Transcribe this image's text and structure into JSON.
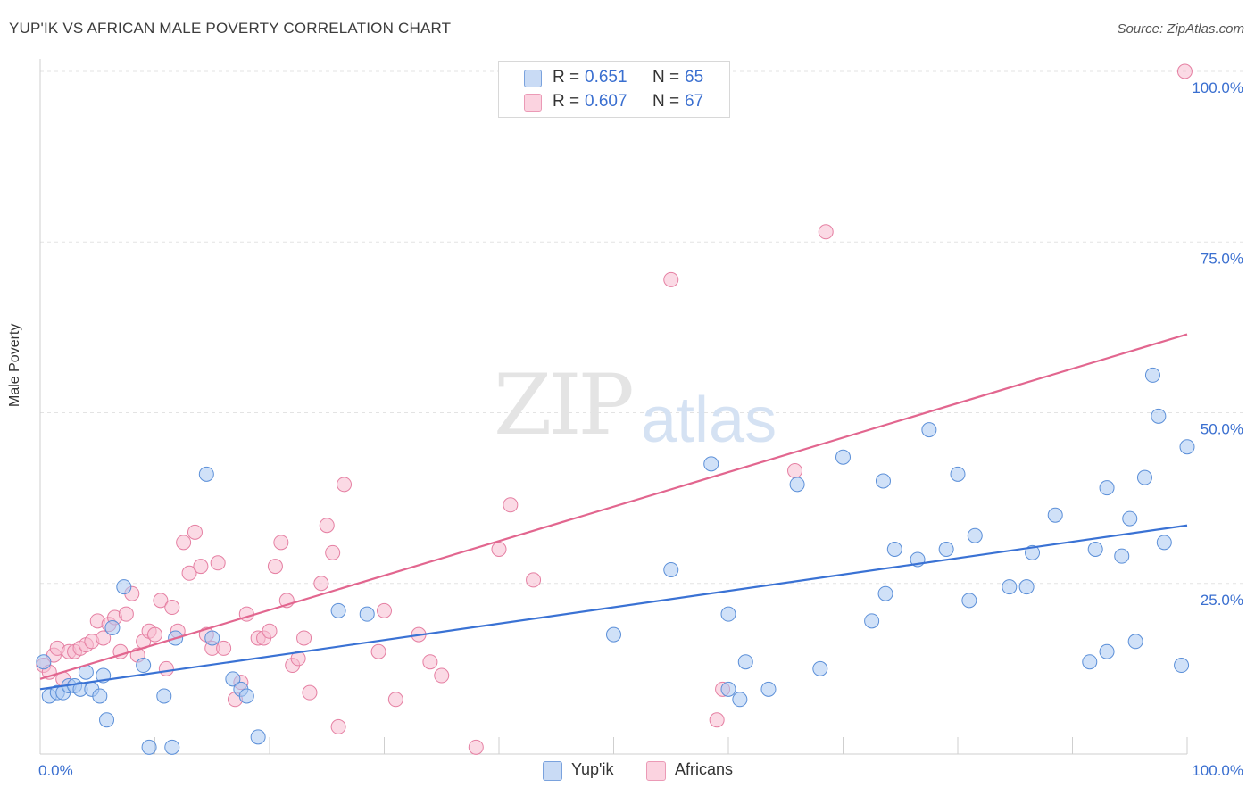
{
  "header": {
    "title": "YUP'IK VS AFRICAN MALE POVERTY CORRELATION CHART",
    "source": "Source: ZipAtlas.com"
  },
  "watermark": {
    "zip": "ZIP",
    "atlas": "atlas"
  },
  "legend": {
    "r_label": "R =",
    "n_label": "N =",
    "entries": [
      {
        "name": "Yup'ik",
        "r": "0.651",
        "n": "65",
        "fill": "#a9c8f2",
        "stroke": "#5b8fd8"
      },
      {
        "name": "Africans",
        "r": "0.607",
        "n": "67",
        "fill": "#f7bcd0",
        "stroke": "#e57fa2"
      }
    ]
  },
  "colors": {
    "blue_line": "#3a72d4",
    "pink_line": "#e2668f",
    "tick_label": "#3a6fd0",
    "grid": "#e3e3e3"
  },
  "chart_data": {
    "type": "scatter",
    "title": "YUP'IK VS AFRICAN MALE POVERTY CORRELATION CHART",
    "xlabel": "",
    "ylabel": "Male Poverty",
    "xlim": [
      0,
      100
    ],
    "ylim": [
      0,
      100
    ],
    "x_tick_labels": [
      "0.0%",
      "100.0%"
    ],
    "y_ticks": [
      25,
      50,
      75,
      100
    ],
    "y_tick_labels": [
      "25.0%",
      "50.0%",
      "75.0%",
      "100.0%"
    ],
    "grid": true,
    "legend_position": "top-center",
    "series": [
      {
        "name": "Yup'ik",
        "color": "#5b8fd8",
        "trend": {
          "x": [
            0,
            100
          ],
          "y": [
            9.5,
            33.5
          ]
        },
        "points": [
          [
            0.3,
            13.5
          ],
          [
            0.8,
            8.5
          ],
          [
            1.5,
            9.0
          ],
          [
            2.0,
            9.0
          ],
          [
            2.5,
            10.0
          ],
          [
            3.0,
            10.0
          ],
          [
            3.5,
            9.5
          ],
          [
            4.0,
            12.0
          ],
          [
            4.5,
            9.5
          ],
          [
            5.2,
            8.5
          ],
          [
            5.5,
            11.5
          ],
          [
            5.8,
            5.0
          ],
          [
            6.3,
            18.5
          ],
          [
            7.3,
            24.5
          ],
          [
            9.0,
            13.0
          ],
          [
            9.5,
            1.0
          ],
          [
            10.8,
            8.5
          ],
          [
            11.5,
            1.0
          ],
          [
            11.8,
            17.0
          ],
          [
            14.5,
            41.0
          ],
          [
            15.0,
            17.0
          ],
          [
            16.8,
            11.0
          ],
          [
            17.5,
            9.5
          ],
          [
            18.0,
            8.5
          ],
          [
            19.0,
            2.5
          ],
          [
            26.0,
            21.0
          ],
          [
            28.5,
            20.5
          ],
          [
            50.0,
            17.5
          ],
          [
            55.0,
            27.0
          ],
          [
            58.5,
            42.5
          ],
          [
            60.0,
            20.5
          ],
          [
            60.0,
            9.5
          ],
          [
            61.0,
            8.0
          ],
          [
            61.5,
            13.5
          ],
          [
            63.5,
            9.5
          ],
          [
            66.0,
            39.5
          ],
          [
            68.0,
            12.5
          ],
          [
            70.0,
            43.5
          ],
          [
            72.5,
            19.5
          ],
          [
            73.5,
            40.0
          ],
          [
            73.7,
            23.5
          ],
          [
            74.5,
            30.0
          ],
          [
            76.5,
            28.5
          ],
          [
            77.5,
            47.5
          ],
          [
            79.0,
            30.0
          ],
          [
            80.0,
            41.0
          ],
          [
            81.0,
            22.5
          ],
          [
            81.5,
            32.0
          ],
          [
            84.5,
            24.5
          ],
          [
            86.0,
            24.5
          ],
          [
            86.5,
            29.5
          ],
          [
            88.5,
            35.0
          ],
          [
            91.5,
            13.5
          ],
          [
            92.0,
            30.0
          ],
          [
            93.0,
            39.0
          ],
          [
            93.0,
            15.0
          ],
          [
            94.3,
            29.0
          ],
          [
            95.0,
            34.5
          ],
          [
            95.5,
            16.5
          ],
          [
            96.3,
            40.5
          ],
          [
            97.0,
            55.5
          ],
          [
            97.5,
            49.5
          ],
          [
            98.0,
            31.0
          ],
          [
            99.5,
            13.0
          ],
          [
            100.0,
            45.0
          ]
        ]
      },
      {
        "name": "Africans",
        "color": "#e57fa2",
        "trend": {
          "x": [
            0,
            100
          ],
          "y": [
            11.0,
            61.5
          ]
        },
        "points": [
          [
            0.3,
            13.0
          ],
          [
            0.8,
            12.0
          ],
          [
            1.2,
            14.5
          ],
          [
            1.5,
            15.5
          ],
          [
            2.0,
            11.0
          ],
          [
            2.5,
            15.0
          ],
          [
            3.0,
            15.0
          ],
          [
            3.5,
            15.5
          ],
          [
            4.0,
            16.0
          ],
          [
            4.5,
            16.5
          ],
          [
            5.0,
            19.5
          ],
          [
            5.5,
            17.0
          ],
          [
            6.0,
            19.0
          ],
          [
            6.5,
            20.0
          ],
          [
            7.0,
            15.0
          ],
          [
            7.5,
            20.5
          ],
          [
            8.0,
            23.5
          ],
          [
            8.5,
            14.5
          ],
          [
            9.0,
            16.5
          ],
          [
            9.5,
            18.0
          ],
          [
            10.0,
            17.5
          ],
          [
            10.5,
            22.5
          ],
          [
            11.0,
            12.5
          ],
          [
            11.5,
            21.5
          ],
          [
            12.0,
            18.0
          ],
          [
            12.5,
            31.0
          ],
          [
            13.0,
            26.5
          ],
          [
            13.5,
            32.5
          ],
          [
            14.0,
            27.5
          ],
          [
            14.5,
            17.5
          ],
          [
            15.0,
            15.5
          ],
          [
            15.5,
            28.0
          ],
          [
            16.0,
            15.5
          ],
          [
            17.0,
            8.0
          ],
          [
            17.5,
            10.5
          ],
          [
            18.0,
            20.5
          ],
          [
            19.0,
            17.0
          ],
          [
            19.5,
            17.0
          ],
          [
            20.0,
            18.0
          ],
          [
            20.5,
            27.5
          ],
          [
            21.0,
            31.0
          ],
          [
            21.5,
            22.5
          ],
          [
            22.0,
            13.0
          ],
          [
            22.5,
            14.0
          ],
          [
            23.0,
            17.0
          ],
          [
            23.5,
            9.0
          ],
          [
            24.5,
            25.0
          ],
          [
            25.0,
            33.5
          ],
          [
            25.5,
            29.5
          ],
          [
            26.0,
            4.0
          ],
          [
            26.5,
            39.5
          ],
          [
            29.5,
            15.0
          ],
          [
            30.0,
            21.0
          ],
          [
            31.0,
            8.0
          ],
          [
            33.0,
            17.5
          ],
          [
            34.0,
            13.5
          ],
          [
            35.0,
            11.5
          ],
          [
            38.0,
            1.0
          ],
          [
            40.0,
            30.0
          ],
          [
            41.0,
            36.5
          ],
          [
            43.0,
            25.5
          ],
          [
            55.0,
            69.5
          ],
          [
            59.0,
            5.0
          ],
          [
            59.5,
            9.5
          ],
          [
            65.8,
            41.5
          ],
          [
            68.5,
            76.5
          ],
          [
            99.8,
            100.0
          ]
        ]
      }
    ]
  },
  "legend_bottom": {
    "items": [
      "Yup'ik",
      "Africans"
    ]
  }
}
